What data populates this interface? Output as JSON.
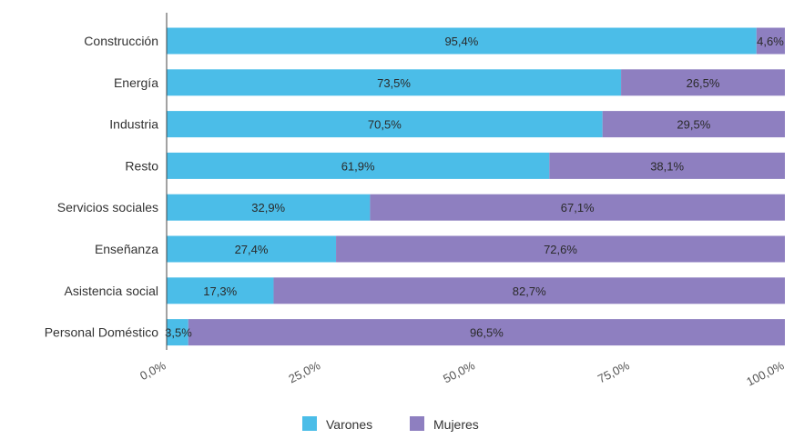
{
  "chart_data": {
    "type": "bar",
    "orientation": "horizontal",
    "stacked": true,
    "categories": [
      "Construcción",
      "Energía",
      "Industria",
      "Resto",
      "Servicios sociales",
      "Enseñanza",
      "Asistencia social",
      "Personal Doméstico"
    ],
    "series": [
      {
        "name": "Varones",
        "color": "#4bbde8",
        "values": [
          95.4,
          73.5,
          70.5,
          61.9,
          32.9,
          27.4,
          17.3,
          3.5
        ],
        "labels": [
          "95,4%",
          "73,5%",
          "70,5%",
          "61,9%",
          "32,9%",
          "27,4%",
          "17,3%",
          "3,5%"
        ]
      },
      {
        "name": "Mujeres",
        "color": "#8e7fc0",
        "values": [
          4.6,
          26.5,
          29.5,
          38.1,
          67.1,
          72.6,
          82.7,
          96.5
        ],
        "labels": [
          "4,6%",
          "26,5%",
          "29,5%",
          "38,1%",
          "67,1%",
          "72,6%",
          "82,7%",
          "96,5%"
        ]
      }
    ],
    "x_ticks": [
      0,
      25,
      50,
      75,
      100
    ],
    "x_tick_labels": [
      "0,0%",
      "25,0%",
      "50,0%",
      "75,0%",
      "100,0%"
    ],
    "xlim": [
      0,
      100
    ],
    "grid": false,
    "legend_position": "bottom"
  }
}
